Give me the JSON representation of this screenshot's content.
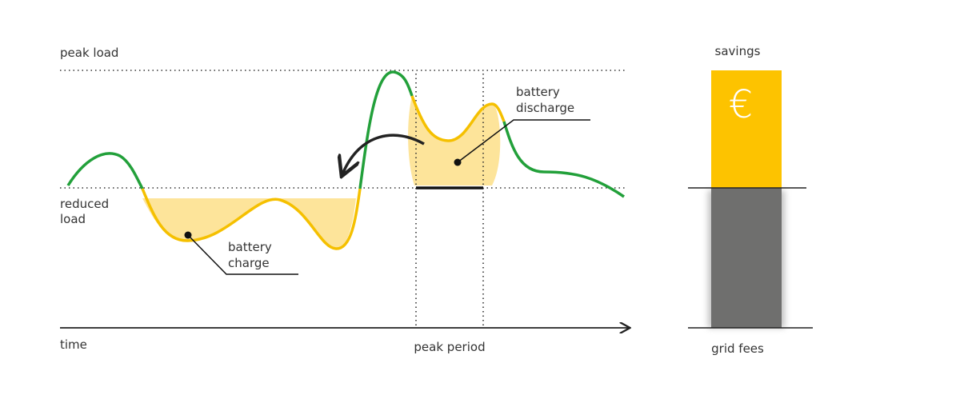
{
  "axis": {
    "peak_load": "peak load",
    "reduced_load": [
      "reduced",
      "load"
    ],
    "time": "time",
    "peak_period": "peak period"
  },
  "annotations": {
    "battery_charge": [
      "battery",
      "charge"
    ],
    "battery_discharge": [
      "battery",
      "discharge"
    ]
  },
  "cost_bar": {
    "savings": "savings",
    "grid_fees": "grid fees",
    "symbol": "€"
  }
}
